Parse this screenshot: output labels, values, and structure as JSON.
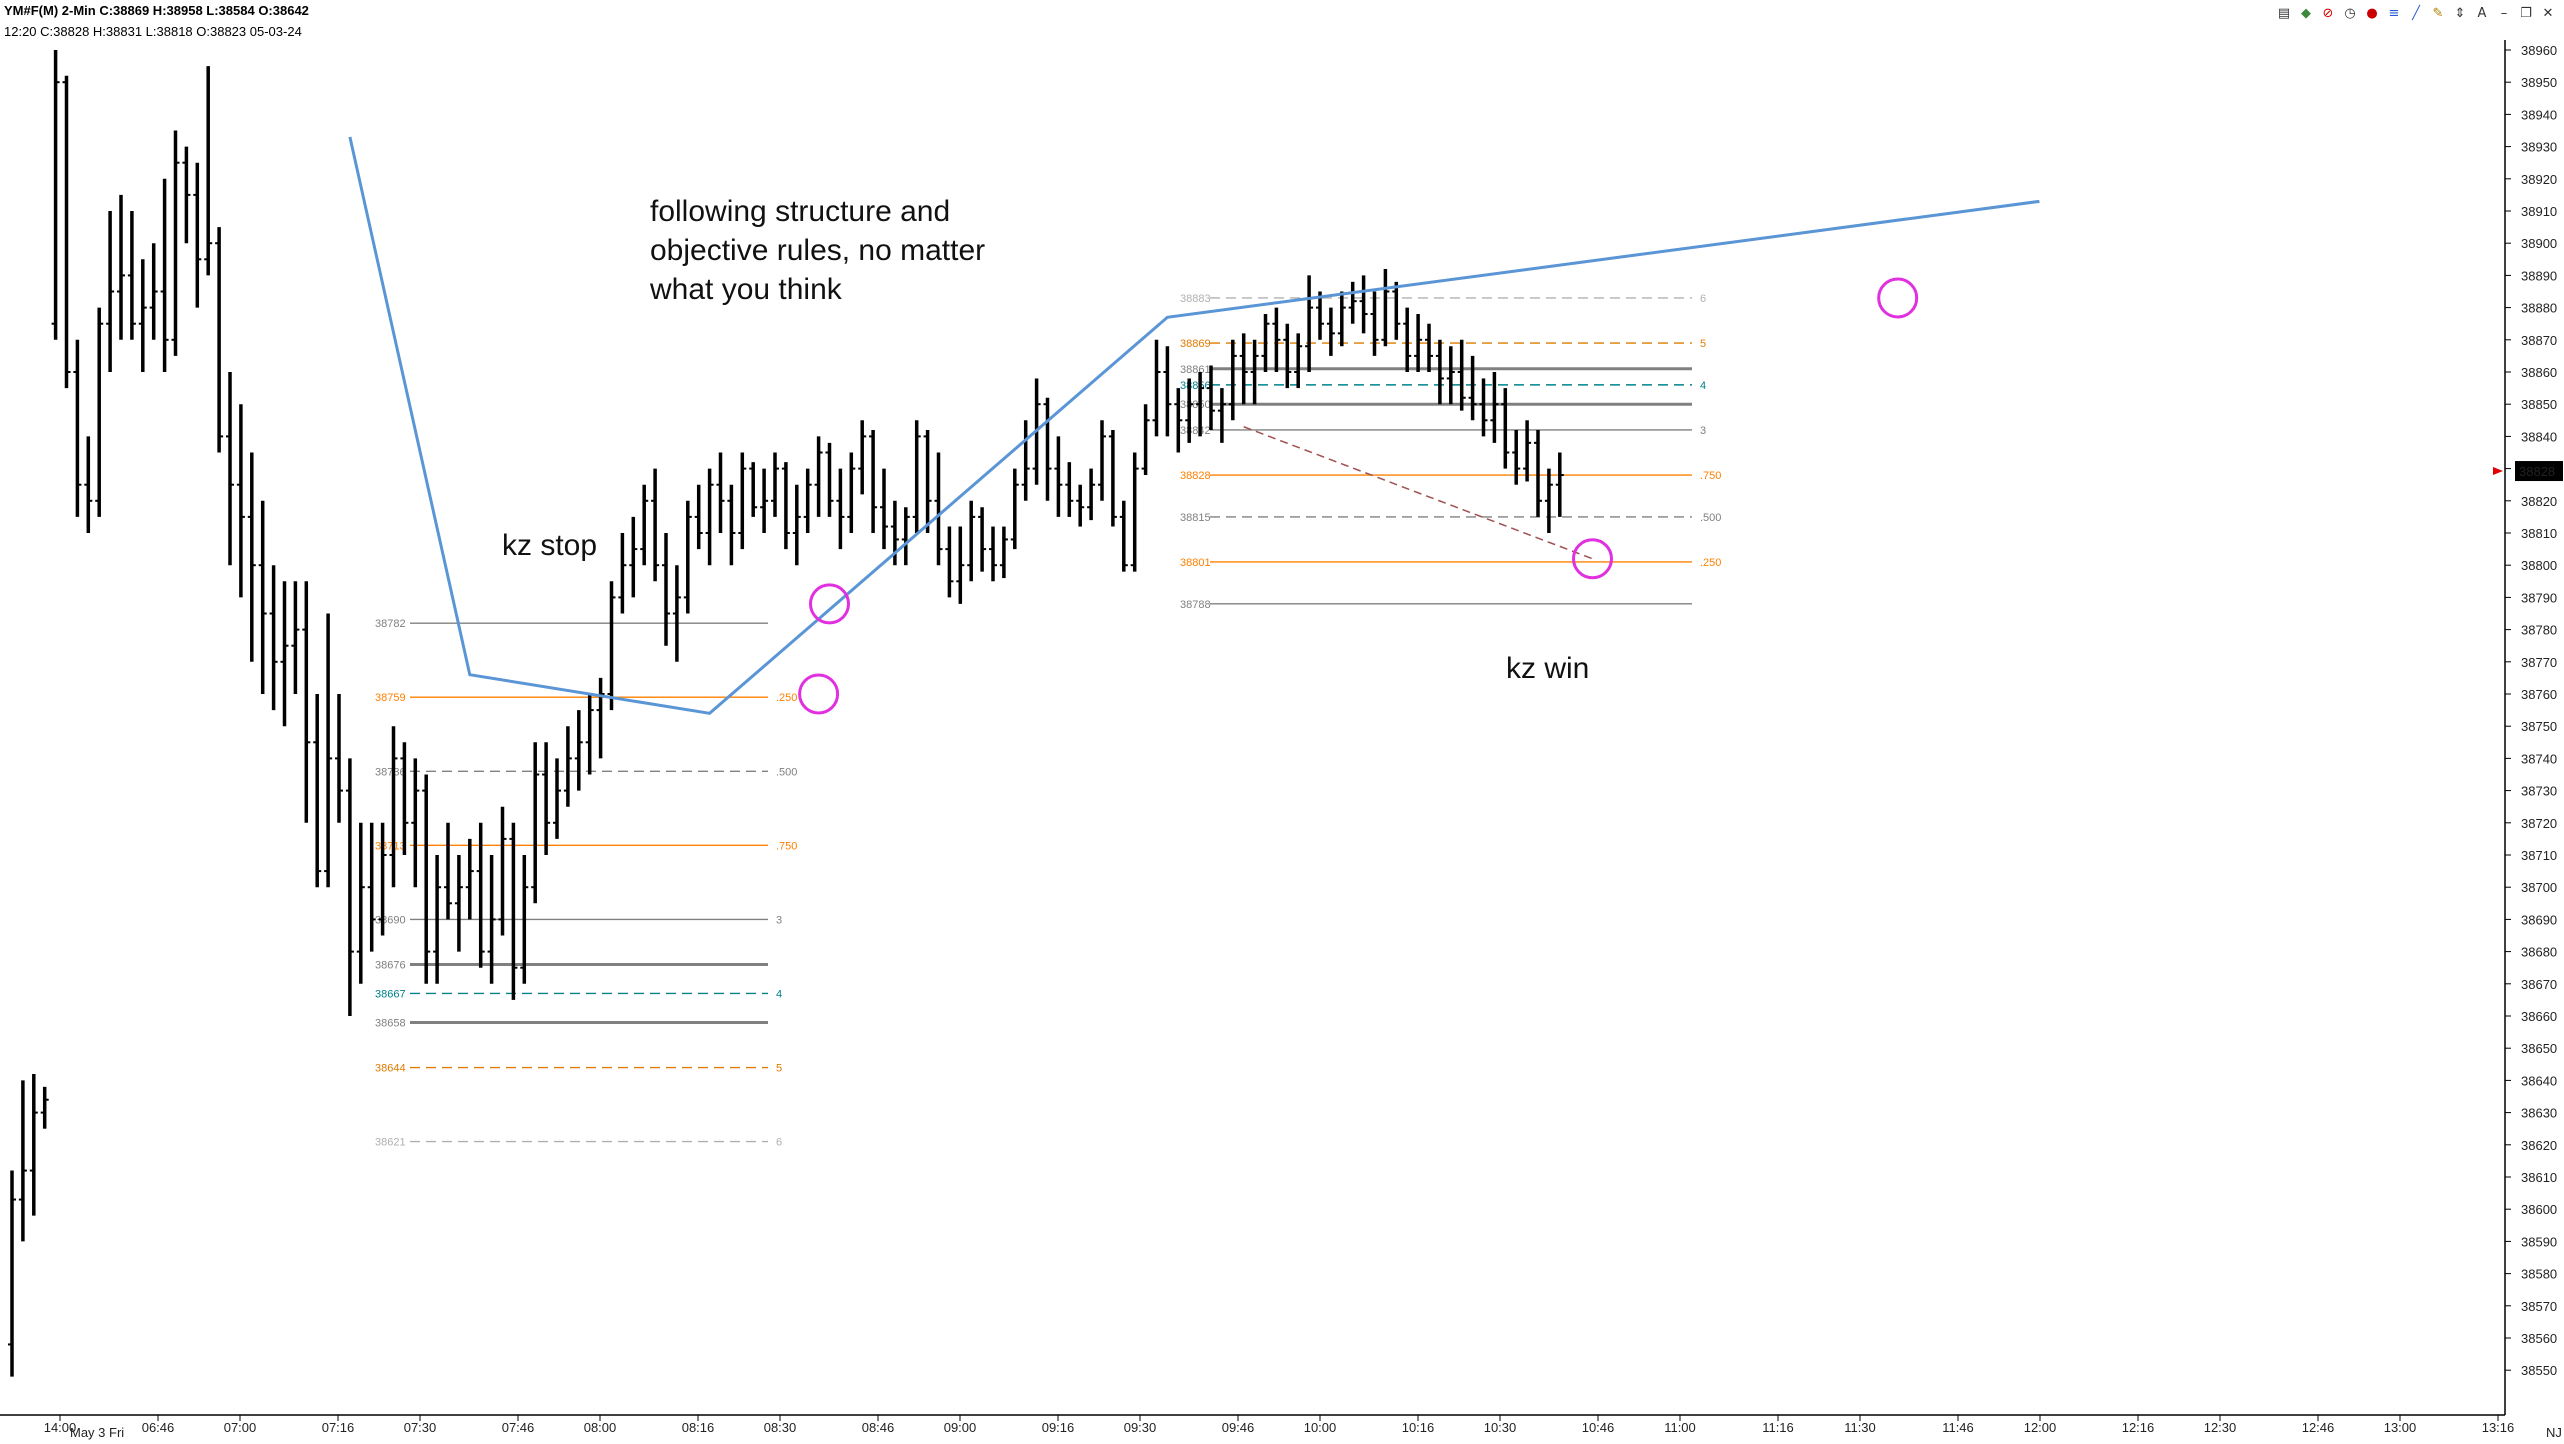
{
  "header": {
    "symbol_line": "YM#F(M)  2-Min  C:38869  H:38958  L:38584  O:38642",
    "info_line": "12:20  C:38828  H:38831  L:38818  O:38823  05-03-24"
  },
  "toolbar": {
    "icons": [
      "chart-type-icon",
      "indicator-icon",
      "stop-icon",
      "clock-icon",
      "bell-icon",
      "fib-icon",
      "trendline-icon",
      "pencil-icon",
      "arrows-icon",
      "text-icon",
      "minimize-icon",
      "restore-icon",
      "close-icon"
    ]
  },
  "chart_data": {
    "type": "ohlc",
    "ylim": [
      38540,
      38965
    ],
    "y_ticks": [
      38550,
      38560,
      38570,
      38580,
      38590,
      38600,
      38610,
      38620,
      38630,
      38640,
      38650,
      38660,
      38670,
      38680,
      38690,
      38700,
      38710,
      38720,
      38730,
      38740,
      38750,
      38760,
      38770,
      38780,
      38790,
      38800,
      38810,
      38820,
      38830,
      38840,
      38850,
      38860,
      38870,
      38880,
      38890,
      38900,
      38910,
      38920,
      38930,
      38940,
      38950,
      38960
    ],
    "x_tick_labels": [
      "14:00",
      "06:46",
      "07:00",
      "07:16",
      "07:30",
      "07:46",
      "08:00",
      "08:16",
      "08:30",
      "08:46",
      "09:00",
      "09:16",
      "09:30",
      "09:46",
      "10:00",
      "10:16",
      "10:30",
      "10:46",
      "11:00",
      "11:16",
      "11:30",
      "11:46",
      "12:00",
      "12:16",
      "12:30",
      "12:46",
      "13:00",
      "13:16"
    ],
    "date_label": "May 3 Fri",
    "corner_label": "NJ",
    "last_price": "38828",
    "annotations": {
      "text1": [
        "following structure and",
        "objective rules, no matter",
        "what you think"
      ],
      "kz_stop": "kz stop",
      "kz_win": "kz win"
    },
    "fib_left": [
      {
        "price": 38782,
        "label": "38782",
        "ratio": "",
        "color": "#808080",
        "style": "solid"
      },
      {
        "price": 38759,
        "label": "38759",
        "ratio": ".250",
        "color": "#ff8000",
        "style": "solid"
      },
      {
        "price": 38736,
        "label": "38736",
        "ratio": ".500",
        "color": "#808080",
        "style": "dashed"
      },
      {
        "price": 38713,
        "label": "38713",
        "ratio": ".750",
        "color": "#ff8000",
        "style": "solid"
      },
      {
        "price": 38690,
        "label": "38690",
        "ratio": "3",
        "color": "#808080",
        "style": "solid"
      },
      {
        "price": 38676,
        "label": "38676",
        "ratio": "",
        "color": "#808080",
        "style": "thick"
      },
      {
        "price": 38667,
        "label": "38667",
        "ratio": "4",
        "color": "#00808b",
        "style": "dashed"
      },
      {
        "price": 38658,
        "label": "38658",
        "ratio": "",
        "color": "#808080",
        "style": "thick"
      },
      {
        "price": 38644,
        "label": "38644",
        "ratio": "5",
        "color": "#e07b00",
        "style": "dashed"
      },
      {
        "price": 38621,
        "label": "38621",
        "ratio": "6",
        "color": "#b0b0b0",
        "style": "dashed"
      }
    ],
    "fib_right": [
      {
        "price": 38883,
        "label": "38883",
        "ratio": "6",
        "color": "#b0b0b0",
        "style": "dashed"
      },
      {
        "price": 38869,
        "label": "38869",
        "ratio": "5",
        "color": "#e07b00",
        "style": "dashed"
      },
      {
        "price": 38861,
        "label": "38861",
        "ratio": "",
        "color": "#808080",
        "style": "thick"
      },
      {
        "price": 38856,
        "label": "38856",
        "ratio": "4",
        "color": "#00808b",
        "style": "dashed"
      },
      {
        "price": 38850,
        "label": "38850",
        "ratio": "",
        "color": "#808080",
        "style": "thick"
      },
      {
        "price": 38842,
        "label": "38842",
        "ratio": "3",
        "color": "#808080",
        "style": "solid"
      },
      {
        "price": 38828,
        "label": "38828",
        "ratio": ".750",
        "color": "#ff8000",
        "style": "solid"
      },
      {
        "price": 38815,
        "label": "38815",
        "ratio": ".500",
        "color": "#808080",
        "style": "dashed"
      },
      {
        "price": 38801,
        "label": "38801",
        "ratio": ".250",
        "color": "#ff8000",
        "style": "solid"
      },
      {
        "price": 38788,
        "label": "38788",
        "ratio": "",
        "color": "#808080",
        "style": "solid"
      }
    ],
    "bars": [
      [
        38558,
        38612,
        38548,
        38603
      ],
      [
        38603,
        38640,
        38590,
        38612
      ],
      [
        38612,
        38642,
        38598,
        38630
      ],
      [
        38630,
        38638,
        38625,
        38634
      ],
      [
        38875,
        38960,
        38870,
        38950
      ],
      [
        38950,
        38952,
        38855,
        38860
      ],
      [
        38860,
        38870,
        38815,
        38825
      ],
      [
        38825,
        38840,
        38810,
        38820
      ],
      [
        38820,
        38880,
        38815,
        38875
      ],
      [
        38875,
        38910,
        38860,
        38885
      ],
      [
        38885,
        38915,
        38870,
        38890
      ],
      [
        38890,
        38910,
        38870,
        38875
      ],
      [
        38875,
        38895,
        38860,
        38880
      ],
      [
        38880,
        38900,
        38870,
        38885
      ],
      [
        38885,
        38920,
        38860,
        38870
      ],
      [
        38870,
        38935,
        38865,
        38925
      ],
      [
        38925,
        38930,
        38900,
        38915
      ],
      [
        38915,
        38925,
        38880,
        38895
      ],
      [
        38895,
        38955,
        38890,
        38900
      ],
      [
        38900,
        38905,
        38835,
        38840
      ],
      [
        38840,
        38860,
        38800,
        38825
      ],
      [
        38825,
        38850,
        38790,
        38815
      ],
      [
        38815,
        38835,
        38770,
        38800
      ],
      [
        38800,
        38820,
        38760,
        38785
      ],
      [
        38785,
        38800,
        38755,
        38770
      ],
      [
        38770,
        38795,
        38750,
        38775
      ],
      [
        38775,
        38795,
        38760,
        38780
      ],
      [
        38780,
        38795,
        38720,
        38745
      ],
      [
        38745,
        38760,
        38700,
        38705
      ],
      [
        38705,
        38785,
        38700,
        38740
      ],
      [
        38740,
        38760,
        38720,
        38730
      ],
      [
        38730,
        38740,
        38660,
        38680
      ],
      [
        38680,
        38720,
        38670,
        38700
      ],
      [
        38700,
        38720,
        38680,
        38690
      ],
      [
        38690,
        38720,
        38685,
        38710
      ],
      [
        38710,
        38750,
        38700,
        38740
      ],
      [
        38740,
        38745,
        38710,
        38720
      ],
      [
        38720,
        38740,
        38700,
        38730
      ],
      [
        38730,
        38735,
        38670,
        38680
      ],
      [
        38680,
        38710,
        38670,
        38700
      ],
      [
        38700,
        38720,
        38690,
        38695
      ],
      [
        38695,
        38710,
        38680,
        38700
      ],
      [
        38700,
        38715,
        38690,
        38705
      ],
      [
        38705,
        38720,
        38675,
        38680
      ],
      [
        38680,
        38710,
        38670,
        38690
      ],
      [
        38690,
        38725,
        38685,
        38715
      ],
      [
        38715,
        38720,
        38665,
        38675
      ],
      [
        38675,
        38710,
        38670,
        38700
      ],
      [
        38700,
        38745,
        38695,
        38735
      ],
      [
        38735,
        38745,
        38710,
        38720
      ],
      [
        38720,
        38740,
        38715,
        38730
      ],
      [
        38730,
        38750,
        38725,
        38740
      ],
      [
        38740,
        38755,
        38730,
        38745
      ],
      [
        38745,
        38760,
        38735,
        38755
      ],
      [
        38755,
        38765,
        38740,
        38760
      ],
      [
        38760,
        38795,
        38755,
        38790
      ],
      [
        38790,
        38810,
        38785,
        38800
      ],
      [
        38800,
        38815,
        38790,
        38805
      ],
      [
        38805,
        38825,
        38800,
        38820
      ],
      [
        38820,
        38830,
        38795,
        38800
      ],
      [
        38800,
        38810,
        38775,
        38785
      ],
      [
        38785,
        38800,
        38770,
        38790
      ],
      [
        38790,
        38820,
        38785,
        38815
      ],
      [
        38815,
        38825,
        38805,
        38810
      ],
      [
        38810,
        38830,
        38800,
        38825
      ],
      [
        38825,
        38835,
        38810,
        38820
      ],
      [
        38820,
        38825,
        38800,
        38810
      ],
      [
        38810,
        38835,
        38805,
        38830
      ],
      [
        38830,
        38832,
        38815,
        38818
      ],
      [
        38818,
        38830,
        38810,
        38820
      ],
      [
        38820,
        38835,
        38815,
        38830
      ],
      [
        38830,
        38832,
        38805,
        38810
      ],
      [
        38810,
        38825,
        38800,
        38815
      ],
      [
        38815,
        38830,
        38810,
        38825
      ],
      [
        38825,
        38840,
        38815,
        38835
      ],
      [
        38835,
        38838,
        38815,
        38820
      ],
      [
        38820,
        38830,
        38805,
        38815
      ],
      [
        38815,
        38835,
        38810,
        38830
      ],
      [
        38830,
        38845,
        38822,
        38840
      ],
      [
        38840,
        38842,
        38810,
        38818
      ],
      [
        38818,
        38830,
        38805,
        38812
      ],
      [
        38812,
        38820,
        38800,
        38808
      ],
      [
        38808,
        38818,
        38800,
        38815
      ],
      [
        38815,
        38845,
        38810,
        38840
      ],
      [
        38840,
        38842,
        38810,
        38820
      ],
      [
        38820,
        38835,
        38800,
        38805
      ],
      [
        38805,
        38812,
        38790,
        38795
      ],
      [
        38795,
        38812,
        38788,
        38800
      ],
      [
        38800,
        38820,
        38795,
        38815
      ],
      [
        38815,
        38818,
        38798,
        38805
      ],
      [
        38805,
        38812,
        38795,
        38800
      ],
      [
        38800,
        38812,
        38796,
        38808
      ],
      [
        38808,
        38830,
        38805,
        38825
      ],
      [
        38825,
        38845,
        38820,
        38830
      ],
      [
        38830,
        38858,
        38825,
        38850
      ],
      [
        38850,
        38852,
        38820,
        38830
      ],
      [
        38830,
        38840,
        38815,
        38825
      ],
      [
        38825,
        38832,
        38815,
        38820
      ],
      [
        38820,
        38825,
        38812,
        38818
      ],
      [
        38818,
        38830,
        38814,
        38825
      ],
      [
        38825,
        38845,
        38820,
        38840
      ],
      [
        38840,
        38842,
        38812,
        38815
      ],
      [
        38815,
        38820,
        38798,
        38800
      ],
      [
        38800,
        38835,
        38798,
        38830
      ],
      [
        38830,
        38850,
        38828,
        38845
      ],
      [
        38845,
        38870,
        38840,
        38860
      ],
      [
        38860,
        38868,
        38840,
        38850
      ],
      [
        38850,
        38855,
        38835,
        38845
      ],
      [
        38845,
        38858,
        38838,
        38850
      ],
      [
        38850,
        38860,
        38840,
        38855
      ],
      [
        38855,
        38862,
        38842,
        38848
      ],
      [
        38848,
        38855,
        38838,
        38850
      ],
      [
        38850,
        38870,
        38845,
        38865
      ],
      [
        38865,
        38872,
        38850,
        38860
      ],
      [
        38860,
        38870,
        38850,
        38865
      ],
      [
        38865,
        38878,
        38860,
        38875
      ],
      [
        38875,
        38880,
        38860,
        38870
      ],
      [
        38870,
        38875,
        38855,
        38860
      ],
      [
        38860,
        38872,
        38855,
        38868
      ],
      [
        38868,
        38890,
        38860,
        38880
      ],
      [
        38880,
        38885,
        38870,
        38875
      ],
      [
        38875,
        38880,
        38865,
        38872
      ],
      [
        38872,
        38885,
        38868,
        38880
      ],
      [
        38880,
        38888,
        38875,
        38882
      ],
      [
        38882,
        38890,
        38872,
        38878
      ],
      [
        38878,
        38885,
        38865,
        38870
      ],
      [
        38870,
        38892,
        38868,
        38885
      ],
      [
        38885,
        38888,
        38870,
        38875
      ],
      [
        38875,
        38880,
        38860,
        38865
      ],
      [
        38865,
        38878,
        38860,
        38870
      ],
      [
        38870,
        38875,
        38860,
        38865
      ],
      [
        38865,
        38870,
        38850,
        38858
      ],
      [
        38858,
        38868,
        38850,
        38860
      ],
      [
        38860,
        38870,
        38848,
        38852
      ],
      [
        38852,
        38865,
        38845,
        38850
      ],
      [
        38850,
        38858,
        38840,
        38845
      ],
      [
        38845,
        38860,
        38838,
        38850
      ],
      [
        38850,
        38855,
        38830,
        38835
      ],
      [
        38835,
        38842,
        38825,
        38830
      ],
      [
        38830,
        38845,
        38826,
        38838
      ],
      [
        38838,
        38842,
        38815,
        38820
      ],
      [
        38820,
        38830,
        38810,
        38825
      ],
      [
        38825,
        38835,
        38815,
        38828
      ]
    ],
    "trend_line": [
      {
        "bar": 31,
        "price": 38933
      },
      {
        "bar": 42,
        "price": 38766
      },
      {
        "bar": 64,
        "price": 38754
      },
      {
        "bar": 106,
        "price": 38877
      },
      {
        "bar": 186,
        "price": 38913
      }
    ],
    "dashed_line": [
      {
        "bar": 113,
        "price": 38843
      },
      {
        "bar": 145,
        "price": 38802
      }
    ],
    "circles": [
      {
        "bar": 74,
        "price": 38760
      },
      {
        "bar": 75,
        "price": 38788
      },
      {
        "bar": 145,
        "price": 38802
      },
      {
        "bar": 173,
        "price": 38883
      }
    ]
  }
}
